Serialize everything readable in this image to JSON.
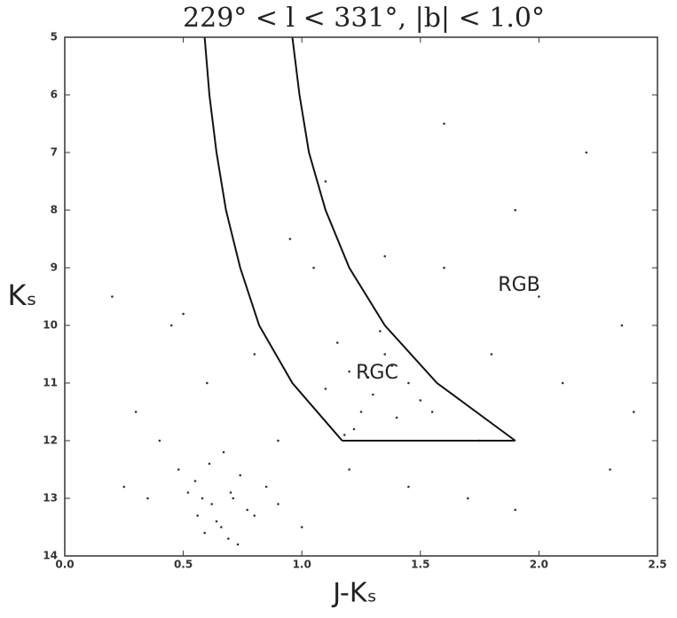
{
  "chart_data": {
    "type": "scatter",
    "title": "229° < l < 331°, |b| < 1.0°",
    "xlabel": "J-Kₛ",
    "ylabel": "Kₛ",
    "xlim": [
      0,
      2.5
    ],
    "ylim": [
      14,
      5
    ],
    "color": "#333333",
    "line_color": "#111111",
    "xticks": [
      {
        "value": 0,
        "label": "0.0"
      },
      0.5,
      {
        "value": 1,
        "label": "1.0"
      },
      1.5,
      {
        "value": 2,
        "label": "2.0"
      },
      2.5
    ],
    "yticks": [
      5,
      6,
      7,
      8,
      9,
      10,
      11,
      12,
      13,
      14
    ],
    "x": [
      0.62,
      0.7,
      0.55,
      0.8,
      0.66,
      0.58,
      0.74,
      0.69,
      0.61,
      0.77,
      0.52,
      0.85,
      0.64,
      0.71,
      0.59,
      0.9,
      0.48,
      0.67,
      0.73,
      0.56,
      1.2,
      1.3,
      1.35,
      1.25,
      1.45,
      1.15,
      1.4,
      1.28,
      1.5,
      1.1,
      1.33,
      1.22,
      1.38,
      1.18,
      1.55,
      0.3,
      0.4,
      0.2,
      1.0,
      1.8,
      2.1,
      2.3,
      0.9,
      1.6,
      1.9,
      2.2,
      0.35,
      0.45,
      1.7,
      2.4,
      1.05,
      0.8,
      1.2,
      0.95,
      1.45,
      1.75,
      2.0,
      0.25,
      0.6,
      1.1,
      1.35,
      2.35,
      0.5,
      1.9,
      1.6
    ],
    "y": [
      13.1,
      12.9,
      12.7,
      13.3,
      13.5,
      13.0,
      12.6,
      13.7,
      12.4,
      13.2,
      12.9,
      12.8,
      13.4,
      13.0,
      13.6,
      13.1,
      12.5,
      12.2,
      13.8,
      13.3,
      10.8,
      11.2,
      10.5,
      11.5,
      11.0,
      10.3,
      11.6,
      10.9,
      11.3,
      11.1,
      10.1,
      11.8,
      10.7,
      11.9,
      11.5,
      11.5,
      12.0,
      9.5,
      13.5,
      10.5,
      11.0,
      12.5,
      12.0,
      9.0,
      8.0,
      7.0,
      13.0,
      10.0,
      13.0,
      11.5,
      9.0,
      10.5,
      12.5,
      8.5,
      12.8,
      12.0,
      9.5,
      12.8,
      11.0,
      7.5,
      8.8,
      10.0,
      9.8,
      13.2,
      6.5
    ],
    "boundary": [
      {
        "x": [
          0.59,
          0.61,
          0.64,
          0.68,
          0.74,
          0.82,
          0.96,
          1.17
        ],
        "y": [
          5,
          6,
          7,
          8,
          9,
          10,
          11,
          12
        ]
      },
      {
        "x": [
          0.96,
          0.99,
          1.03,
          1.1,
          1.2,
          1.35,
          1.57,
          1.9
        ],
        "y": [
          5,
          6,
          7,
          8,
          9,
          10,
          11,
          12
        ]
      },
      {
        "x": [
          1.17,
          1.9
        ],
        "y": [
          12,
          12
        ]
      }
    ],
    "annotations": [
      "RGB",
      "RGC"
    ]
  }
}
